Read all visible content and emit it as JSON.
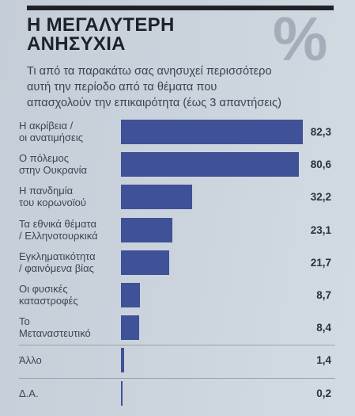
{
  "header": {
    "title_lines": [
      "Η ΜΕΓΑΛΥΤΕΡΗ",
      "ΑΝΗΣΥΧΙΑ"
    ],
    "subtitle_lines": [
      "Τι από τα παρακάτω σας ανησυχεί περισσότερο",
      "αυτή την περίοδο από τα θέματα που",
      "απασχολούν την επικαιρότητα (έως 3 απαντήσεις)"
    ],
    "percent_icon": "%"
  },
  "colors": {
    "bar": "#3f5197",
    "accent_dark": "#1f2328"
  },
  "chart_data": {
    "type": "bar",
    "orientation": "horizontal",
    "categories": [
      [
        "Η ακρίβεια /",
        "οι ανατιμήσεις"
      ],
      [
        "Ο πόλεμος",
        "στην Ουκρανία"
      ],
      [
        "Η πανδημία",
        "του κορωνοϊού"
      ],
      [
        "Τα εθνικά θέματα",
        "/ Ελληνοτουρκικά"
      ],
      [
        "Εγκληματικότητα",
        "/ φαινόμενα βίας"
      ],
      [
        "Οι φυσικές",
        "καταστροφές"
      ],
      [
        "Το",
        "Μεταναστευτικό"
      ],
      [
        "Άλλο"
      ],
      [
        "Δ.Α."
      ]
    ],
    "values": [
      82.3,
      80.6,
      32.2,
      23.1,
      21.7,
      8.7,
      8.4,
      1.4,
      0.2
    ],
    "value_labels": [
      "82,3",
      "80,6",
      "32,2",
      "23,1",
      "21,7",
      "8,7",
      "8,4",
      "1,4",
      "0,2"
    ],
    "xlim": [
      0,
      82.3
    ],
    "grid": false,
    "legend": "none"
  }
}
